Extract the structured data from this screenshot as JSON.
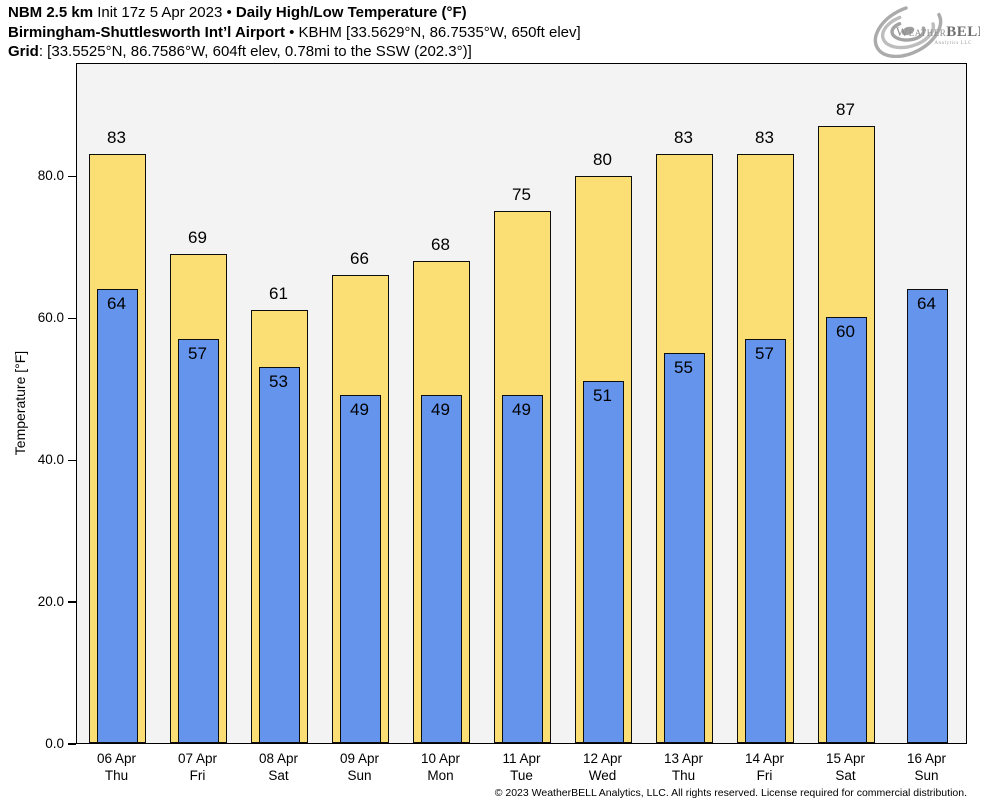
{
  "header": {
    "line1": {
      "model": "NBM 2.5 km",
      "init": " Init 17z 5 Apr 2023 • ",
      "title": "Daily High/Low Temperature (°F)"
    },
    "line2": {
      "station": "Birmingham-Shuttlesworth Int’l Airport",
      "details": " • KBHM [33.5629°N, 86.7535°W, 650ft elev]"
    },
    "line3": {
      "label": "Grid",
      "details": ": [33.5525°N, 86.7586°W, 604ft elev, 0.78mi to the SSW (202.3°)]"
    }
  },
  "logo": {
    "weather": "Weather",
    "bell": "BELL",
    "subtitle": "Analytics LLC"
  },
  "chart_data": {
    "type": "bar",
    "title": "Daily High/Low Temperature (°F)",
    "xlabel": "",
    "ylabel": "Temperature [°F]",
    "ylim": [
      0,
      96
    ],
    "yticks": [
      0,
      20,
      40,
      60,
      80
    ],
    "ytick_labels": [
      "0.0",
      "20.0",
      "40.0",
      "60.0",
      "80.0"
    ],
    "grid": false,
    "legend_position": "none",
    "plot_background": "#F3F3F3",
    "bar_border_color": "#0D0D0D",
    "categories": [
      {
        "date": "06 Apr",
        "day": "Thu"
      },
      {
        "date": "07 Apr",
        "day": "Fri"
      },
      {
        "date": "08 Apr",
        "day": "Sat"
      },
      {
        "date": "09 Apr",
        "day": "Sun"
      },
      {
        "date": "10 Apr",
        "day": "Mon"
      },
      {
        "date": "11 Apr",
        "day": "Tue"
      },
      {
        "date": "12 Apr",
        "day": "Wed"
      },
      {
        "date": "13 Apr",
        "day": "Thu"
      },
      {
        "date": "14 Apr",
        "day": "Fri"
      },
      {
        "date": "15 Apr",
        "day": "Sat"
      },
      {
        "date": "16 Apr",
        "day": "Sun"
      }
    ],
    "series": [
      {
        "name": "High",
        "color": "#FBDF74",
        "values": [
          83,
          69,
          61,
          66,
          68,
          75,
          80,
          83,
          83,
          87,
          null
        ]
      },
      {
        "name": "Low",
        "color": "#6494EC",
        "values": [
          64,
          57,
          53,
          49,
          49,
          49,
          51,
          55,
          57,
          60,
          64
        ]
      }
    ]
  },
  "footer": {
    "copyright": "© 2023 WeatherBELL Analytics, LLC. All rights reserved. License required for commercial distribution."
  }
}
